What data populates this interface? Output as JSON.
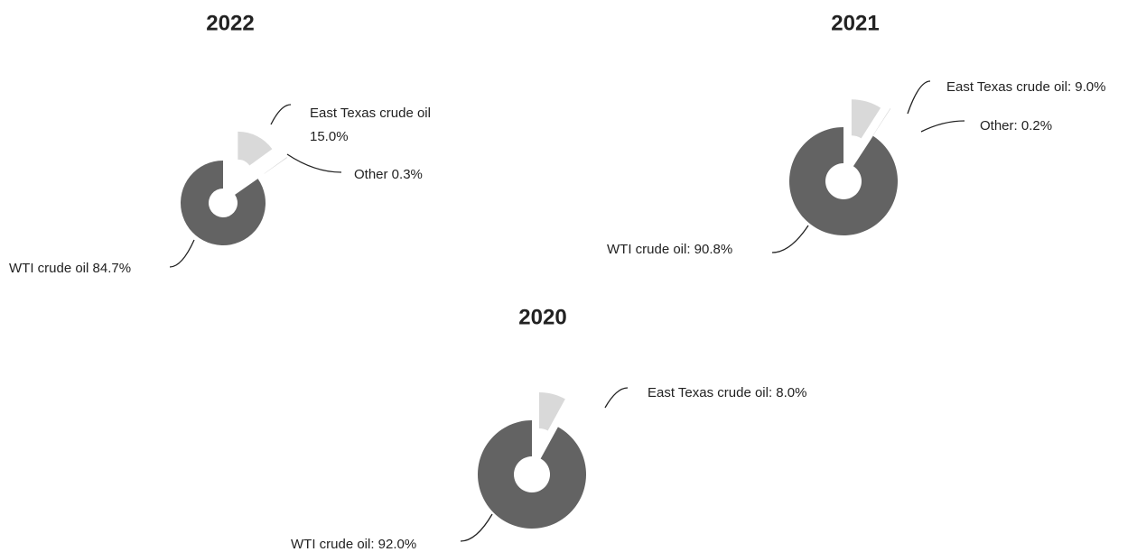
{
  "chart_data": [
    {
      "type": "pie",
      "title": "2022",
      "values": [
        15.0,
        0.3,
        84.7
      ],
      "labels": [
        [
          "East Texas crude oil",
          "15.0%"
        ],
        [
          "Other 0.3%"
        ],
        [
          "WTI crude oil 84.7%"
        ]
      ],
      "colors": [
        "#d9d9d9",
        "#d9d9d9",
        "#636363"
      ]
    },
    {
      "type": "pie",
      "title": "2021",
      "values": [
        9.0,
        0.2,
        90.8
      ],
      "labels": [
        [
          "East Texas crude oil: 9.0%"
        ],
        [
          "Other: 0.2%"
        ],
        [
          "WTI crude oil: 90.8%"
        ]
      ],
      "colors": [
        "#d9d9d9",
        "#d9d9d9",
        "#636363"
      ]
    },
    {
      "type": "pie",
      "title": "2020",
      "values": [
        8.0,
        92.0
      ],
      "labels": [
        [
          "East Texas crude oil: 8.0%"
        ],
        [
          "WTI crude oil: 92.0%"
        ]
      ],
      "colors": [
        "#d9d9d9",
        "#636363"
      ]
    }
  ]
}
